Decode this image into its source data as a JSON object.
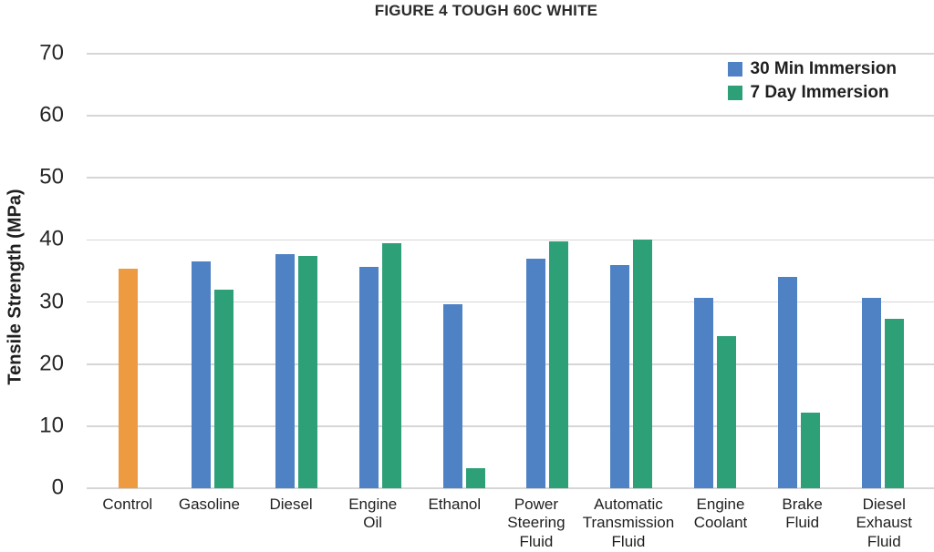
{
  "chart_data": {
    "type": "bar",
    "title": "FIGURE 4 TOUGH 60C WHITE",
    "ylabel": "Tensile Strength (MPa)",
    "xlabel": "",
    "ylim": [
      0,
      70
    ],
    "yticks": [
      70,
      60,
      50,
      40,
      30,
      20,
      10,
      0
    ],
    "grid": true,
    "legend_position": "top-right",
    "categories": [
      "Control",
      "Gasoline",
      "Diesel",
      "Engine Oil",
      "Ethanol",
      "Power Steering Fluid",
      "Automatic Transmission Fluid",
      "Engine Coolant",
      "Brake Fluid",
      "Diesel Exhaust Fluid"
    ],
    "series": [
      {
        "name": "30 Min Immersion",
        "color": "#4E82C4",
        "values": [
          35.3,
          36.6,
          37.7,
          35.7,
          29.7,
          37.0,
          35.9,
          30.6,
          34.1,
          30.7
        ]
      },
      {
        "name": "7 Day Immersion",
        "color": "#2EA078",
        "values": [
          null,
          32.0,
          37.4,
          39.5,
          3.2,
          39.8,
          40.0,
          24.5,
          12.2,
          27.3
        ]
      }
    ],
    "highlight": {
      "category": "Control",
      "color": "#EE9A40"
    }
  },
  "colors": {
    "text": "#262626",
    "gridline": "#D6D6D6",
    "background": "#FFFFFF"
  }
}
